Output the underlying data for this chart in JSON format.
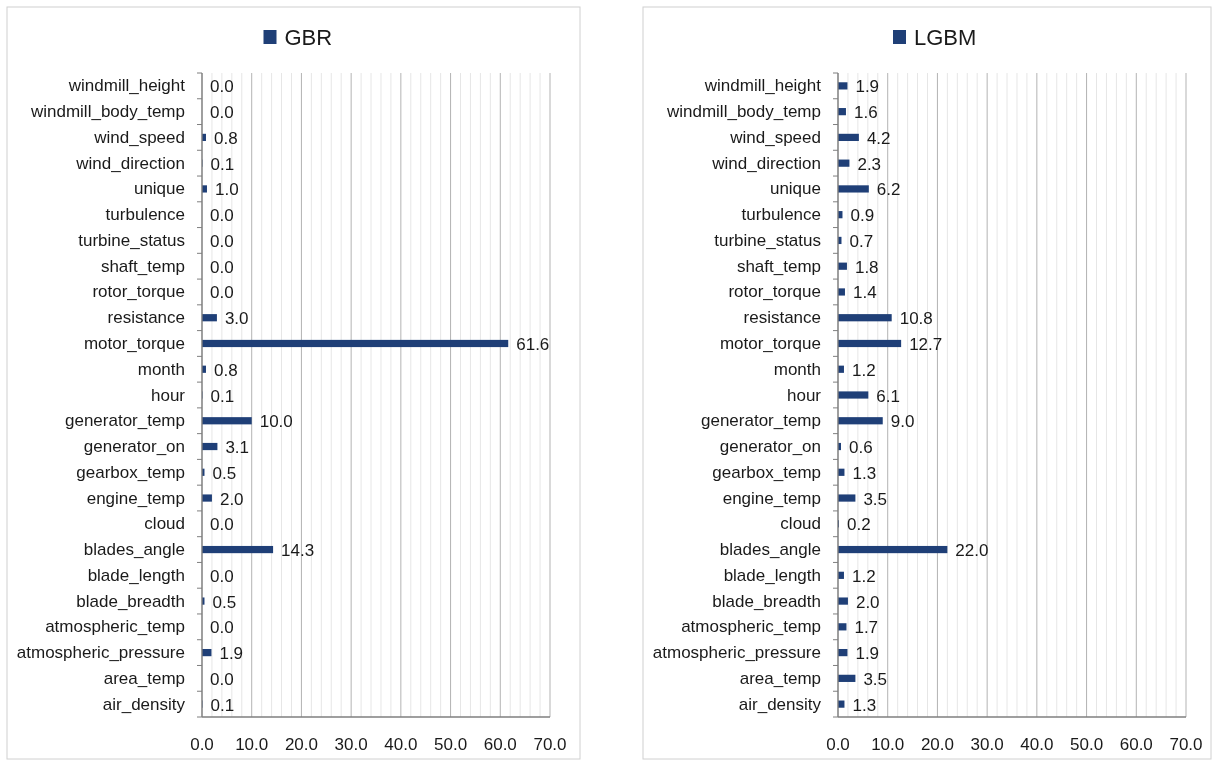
{
  "chart_data": [
    {
      "type": "bar",
      "orientation": "horizontal",
      "legend": "top",
      "grid": "x",
      "categories": [
        "windmill_height",
        "windmill_body_temp",
        "wind_speed",
        "wind_direction",
        "unique",
        "turbulence",
        "turbine_status",
        "shaft_temp",
        "rotor_torque",
        "resistance",
        "motor_torque",
        "month",
        "hour",
        "generator_temp",
        "generator_on",
        "gearbox_temp",
        "engine_temp",
        "cloud",
        "blades_angle",
        "blade_length",
        "blade_breadth",
        "atmospheric_temp",
        "atmospheric_pressure",
        "area_temp",
        "air_density"
      ],
      "series": [
        {
          "name": "GBR",
          "color": "#1f3f77",
          "values": [
            0.0,
            0.0,
            0.8,
            0.1,
            1.0,
            0.0,
            0.0,
            0.0,
            0.0,
            3.0,
            61.6,
            0.8,
            0.1,
            10.0,
            3.1,
            0.5,
            2.0,
            0.0,
            14.3,
            0.0,
            0.5,
            0.0,
            1.9,
            0.0,
            0.1
          ],
          "value_labels": [
            "0.0",
            "0.0",
            "0.8",
            "0.1",
            "1.0",
            "0.0",
            "0.0",
            "0.0",
            "0.0",
            "3.0",
            "61.6",
            "0.8",
            "0.1",
            "10.0",
            "3.1",
            "0.5",
            "2.0",
            "0.0",
            "14.3",
            "0.0",
            "0.5",
            "0.0",
            "1.9",
            "0.0",
            "0.1"
          ]
        }
      ],
      "xlim": [
        0,
        70
      ],
      "xticks": [
        {
          "value": 0,
          "label": "0.0"
        },
        {
          "value": 2,
          "label": null
        },
        {
          "value": 4,
          "label": null
        },
        {
          "value": 6,
          "label": null
        },
        {
          "value": 8,
          "label": null
        },
        {
          "value": 10,
          "label": "10.0"
        },
        {
          "value": 12,
          "label": null
        },
        {
          "value": 14,
          "label": null
        },
        {
          "value": 16,
          "label": null
        },
        {
          "value": 18,
          "label": null
        },
        {
          "value": 20,
          "label": "20.0"
        },
        {
          "value": 22,
          "label": null
        },
        {
          "value": 24,
          "label": null
        },
        {
          "value": 26,
          "label": null
        },
        {
          "value": 28,
          "label": null
        },
        {
          "value": 30,
          "label": "30.0"
        },
        {
          "value": 32,
          "label": null
        },
        {
          "value": 34,
          "label": null
        },
        {
          "value": 36,
          "label": null
        },
        {
          "value": 38,
          "label": null
        },
        {
          "value": 40,
          "label": "40.0"
        },
        {
          "value": 42,
          "label": null
        },
        {
          "value": 44,
          "label": null
        },
        {
          "value": 46,
          "label": null
        },
        {
          "value": 48,
          "label": null
        },
        {
          "value": 50,
          "label": "50.0"
        },
        {
          "value": 52,
          "label": null
        },
        {
          "value": 54,
          "label": null
        },
        {
          "value": 56,
          "label": null
        },
        {
          "value": 58,
          "label": null
        },
        {
          "value": 60,
          "label": "60.0"
        },
        {
          "value": 62,
          "label": null
        },
        {
          "value": 64,
          "label": null
        },
        {
          "value": 66,
          "label": null
        },
        {
          "value": 68,
          "label": null
        },
        {
          "value": 70,
          "label": "70.0"
        }
      ]
    },
    {
      "type": "bar",
      "orientation": "horizontal",
      "legend": "top",
      "grid": "x",
      "categories": [
        "windmill_height",
        "windmill_body_temp",
        "wind_speed",
        "wind_direction",
        "unique",
        "turbulence",
        "turbine_status",
        "shaft_temp",
        "rotor_torque",
        "resistance",
        "motor_torque",
        "month",
        "hour",
        "generator_temp",
        "generator_on",
        "gearbox_temp",
        "engine_temp",
        "cloud",
        "blades_angle",
        "blade_length",
        "blade_breadth",
        "atmospheric_temp",
        "atmospheric_pressure",
        "area_temp",
        "air_density"
      ],
      "series": [
        {
          "name": "LGBM",
          "color": "#1f3f77",
          "values": [
            1.9,
            1.6,
            4.2,
            2.3,
            6.2,
            0.9,
            0.7,
            1.8,
            1.4,
            10.8,
            12.7,
            1.2,
            6.1,
            9.0,
            0.6,
            1.3,
            3.5,
            0.2,
            22.0,
            1.2,
            2.0,
            1.7,
            1.9,
            3.5,
            1.3
          ],
          "value_labels": [
            "1.9",
            "1.6",
            "4.2",
            "2.3",
            "6.2",
            "0.9",
            "0.7",
            "1.8",
            "1.4",
            "10.8",
            "12.7",
            "1.2",
            "6.1",
            "9.0",
            "0.6",
            "1.3",
            "3.5",
            "0.2",
            "22.0",
            "1.2",
            "2.0",
            "1.7",
            "1.9",
            "3.5",
            "1.3"
          ]
        }
      ],
      "xlim": [
        0,
        70
      ],
      "xticks": [
        {
          "value": 0,
          "label": "0.0"
        },
        {
          "value": 2,
          "label": null
        },
        {
          "value": 4,
          "label": null
        },
        {
          "value": 6,
          "label": null
        },
        {
          "value": 8,
          "label": null
        },
        {
          "value": 10,
          "label": "10.0"
        },
        {
          "value": 12,
          "label": null
        },
        {
          "value": 14,
          "label": null
        },
        {
          "value": 16,
          "label": null
        },
        {
          "value": 18,
          "label": null
        },
        {
          "value": 20,
          "label": "20.0"
        },
        {
          "value": 22,
          "label": null
        },
        {
          "value": 24,
          "label": null
        },
        {
          "value": 26,
          "label": null
        },
        {
          "value": 28,
          "label": null
        },
        {
          "value": 30,
          "label": "30.0"
        },
        {
          "value": 32,
          "label": null
        },
        {
          "value": 34,
          "label": null
        },
        {
          "value": 36,
          "label": null
        },
        {
          "value": 38,
          "label": null
        },
        {
          "value": 40,
          "label": "40.0"
        },
        {
          "value": 42,
          "label": null
        },
        {
          "value": 44,
          "label": null
        },
        {
          "value": 46,
          "label": null
        },
        {
          "value": 48,
          "label": null
        },
        {
          "value": 50,
          "label": "50.0"
        },
        {
          "value": 52,
          "label": null
        },
        {
          "value": 54,
          "label": null
        },
        {
          "value": 56,
          "label": null
        },
        {
          "value": 58,
          "label": null
        },
        {
          "value": 60,
          "label": "60.0"
        },
        {
          "value": 62,
          "label": null
        },
        {
          "value": 64,
          "label": null
        },
        {
          "value": 66,
          "label": null
        },
        {
          "value": 68,
          "label": null
        },
        {
          "value": 70,
          "label": "70.0"
        }
      ]
    }
  ]
}
